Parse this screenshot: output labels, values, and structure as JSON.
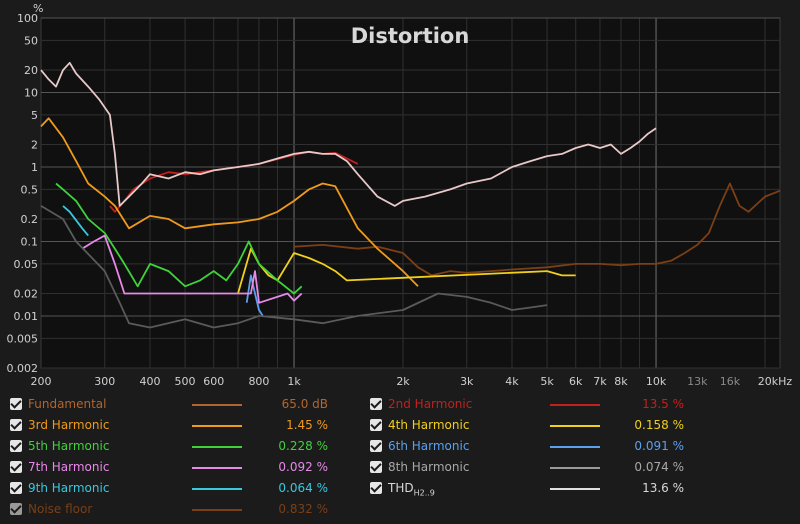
{
  "window": {
    "title": "Distortion"
  },
  "chart_data": {
    "type": "line",
    "title": "Distortion",
    "ylabel": "%",
    "xlabel": "",
    "xscale": "log",
    "yscale": "log",
    "xlim": [
      200,
      22000
    ],
    "ylim": [
      0.002,
      100
    ],
    "y_ticks": [
      {
        "v": 100,
        "label": "100"
      },
      {
        "v": 50,
        "label": "50"
      },
      {
        "v": 20,
        "label": "20"
      },
      {
        "v": 10,
        "label": "10"
      },
      {
        "v": 5,
        "label": "5"
      },
      {
        "v": 2,
        "label": "2"
      },
      {
        "v": 1,
        "label": "1"
      },
      {
        "v": 0.5,
        "label": "0.5"
      },
      {
        "v": 0.2,
        "label": "0.2"
      },
      {
        "v": 0.1,
        "label": "0.1"
      },
      {
        "v": 0.05,
        "label": "0.05"
      },
      {
        "v": 0.02,
        "label": "0.02"
      },
      {
        "v": 0.01,
        "label": "0.01"
      },
      {
        "v": 0.005,
        "label": "0.005"
      },
      {
        "v": 0.002,
        "label": "0.002"
      }
    ],
    "x_ticks": [
      {
        "v": 200,
        "label": "200"
      },
      {
        "v": 300,
        "label": "300"
      },
      {
        "v": 400,
        "label": "400"
      },
      {
        "v": 500,
        "label": "500"
      },
      {
        "v": 600,
        "label": "600"
      },
      {
        "v": 800,
        "label": "800"
      },
      {
        "v": 1000,
        "label": "1k"
      },
      {
        "v": 2000,
        "label": "2k"
      },
      {
        "v": 3000,
        "label": "3k"
      },
      {
        "v": 4000,
        "label": "4k"
      },
      {
        "v": 5000,
        "label": "5k"
      },
      {
        "v": 6000,
        "label": "6k"
      },
      {
        "v": 7000,
        "label": "7k"
      },
      {
        "v": 8000,
        "label": "8k"
      },
      {
        "v": 10000,
        "label": "10k"
      },
      {
        "v": 13000,
        "label": "13k"
      },
      {
        "v": 16000,
        "label": "16k"
      },
      {
        "v": 20000,
        "label": "20kHz"
      }
    ],
    "series": [
      {
        "name": "Noise floor",
        "color": "#7b3f15",
        "x": [
          1000,
          1200,
          1500,
          1700,
          2000,
          2200,
          2400,
          2700,
          3000,
          3500,
          4000,
          5000,
          6000,
          7000,
          8000,
          9000,
          10000,
          11000,
          12000,
          13000,
          14000,
          15000,
          16000,
          17000,
          18000,
          20000,
          22000
        ],
        "y": [
          0.085,
          0.09,
          0.08,
          0.085,
          0.07,
          0.045,
          0.035,
          0.04,
          0.038,
          0.04,
          0.042,
          0.045,
          0.05,
          0.05,
          0.048,
          0.05,
          0.05,
          0.055,
          0.07,
          0.09,
          0.13,
          0.3,
          0.6,
          0.3,
          0.25,
          0.4,
          0.48
        ]
      },
      {
        "name": "Fundamental_or_2nd",
        "color": "#c0201e",
        "x": [
          310,
          320,
          340,
          360,
          400,
          450,
          500,
          600,
          700,
          800,
          1000,
          1100,
          1200,
          1300,
          1500
        ],
        "y": [
          0.3,
          0.25,
          0.35,
          0.5,
          0.7,
          0.85,
          0.8,
          0.9,
          1.0,
          1.1,
          1.45,
          1.6,
          1.5,
          1.55,
          1.1
        ]
      },
      {
        "name": "3rd Harmonic",
        "color": "#f09a1c",
        "x": [
          200,
          210,
          230,
          250,
          270,
          300,
          320,
          350,
          400,
          450,
          500,
          600,
          700,
          800,
          900,
          1000,
          1100,
          1200,
          1300,
          1500,
          1700,
          2000,
          2200
        ],
        "y": [
          3.5,
          4.5,
          2.5,
          1.2,
          0.6,
          0.4,
          0.3,
          0.15,
          0.22,
          0.2,
          0.15,
          0.17,
          0.18,
          0.2,
          0.25,
          0.35,
          0.5,
          0.6,
          0.55,
          0.15,
          0.08,
          0.04,
          0.025
        ]
      },
      {
        "name": "4th Harmonic",
        "color": "#f0d01c",
        "x": [
          700,
          760,
          800,
          850,
          900,
          1000,
          1100,
          1200,
          1300,
          1400,
          5000,
          5500,
          6000
        ],
        "y": [
          0.02,
          0.08,
          0.05,
          0.035,
          0.03,
          0.07,
          0.06,
          0.05,
          0.04,
          0.03,
          0.04,
          0.035,
          0.035
        ]
      },
      {
        "name": "5th Harmonic",
        "color": "#3fd23a",
        "x": [
          220,
          230,
          250,
          270,
          300,
          320,
          340,
          370,
          400,
          450,
          500,
          550,
          600,
          650,
          700,
          750,
          800,
          900,
          1000,
          1050
        ],
        "y": [
          0.6,
          0.5,
          0.35,
          0.2,
          0.13,
          0.08,
          0.05,
          0.025,
          0.05,
          0.04,
          0.025,
          0.03,
          0.04,
          0.03,
          0.05,
          0.1,
          0.05,
          0.03,
          0.02,
          0.025
        ]
      },
      {
        "name": "6th Harmonic",
        "color": "#5aa0ee",
        "x": [
          740,
          760,
          780,
          800,
          820
        ],
        "y": [
          0.015,
          0.035,
          0.02,
          0.012,
          0.01
        ]
      },
      {
        "name": "7th Harmonic",
        "color": "#e888e8",
        "x": [
          260,
          280,
          300,
          320,
          340,
          760,
          780,
          800,
          960,
          1000,
          1050
        ],
        "y": [
          0.08,
          0.1,
          0.12,
          0.05,
          0.02,
          0.02,
          0.04,
          0.015,
          0.02,
          0.016,
          0.02
        ]
      },
      {
        "name": "9th Harmonic",
        "color": "#38c8e0",
        "x": [
          230,
          240,
          260,
          270
        ],
        "y": [
          0.3,
          0.25,
          0.15,
          0.12
        ]
      },
      {
        "name": "8th Harmonic",
        "color": "#5a5a5a",
        "x": [
          200,
          230,
          250,
          300,
          330,
          350,
          400,
          500,
          600,
          700,
          800,
          1000,
          1200,
          1500,
          2000,
          2500,
          3000,
          3500,
          4000,
          4500,
          5000
        ],
        "y": [
          0.3,
          0.2,
          0.1,
          0.04,
          0.015,
          0.008,
          0.007,
          0.009,
          0.007,
          0.008,
          0.01,
          0.009,
          0.008,
          0.01,
          0.012,
          0.02,
          0.018,
          0.015,
          0.012,
          0.013,
          0.014
        ]
      },
      {
        "name": "THD",
        "color": "#e8c8c8",
        "x": [
          200,
          210,
          220,
          230,
          240,
          250,
          270,
          290,
          310,
          320,
          330,
          350,
          380,
          400,
          450,
          500,
          550,
          600,
          700,
          800,
          900,
          1000,
          1100,
          1200,
          1300,
          1400,
          1500,
          1700,
          1900,
          2000,
          2300,
          2700,
          3000,
          3500,
          4000,
          4500,
          5000,
          5500,
          6000,
          6500,
          7000,
          7500,
          8000,
          8500,
          9000,
          9500,
          10000
        ],
        "y": [
          20,
          15,
          12,
          20,
          25,
          18,
          12,
          8,
          5,
          1.5,
          0.3,
          0.4,
          0.6,
          0.8,
          0.7,
          0.85,
          0.8,
          0.9,
          1.0,
          1.1,
          1.3,
          1.5,
          1.6,
          1.5,
          1.5,
          1.2,
          0.8,
          0.4,
          0.3,
          0.35,
          0.4,
          0.5,
          0.6,
          0.7,
          1.0,
          1.2,
          1.4,
          1.5,
          1.8,
          2.0,
          1.8,
          2.0,
          1.5,
          1.8,
          2.2,
          2.8,
          3.3
        ]
      }
    ]
  },
  "legend": {
    "items": [
      {
        "id": "fundamental",
        "label": "Fundamental",
        "value": "65.0 dB",
        "color": "#b2652c",
        "text_color": "#b2652c"
      },
      {
        "id": "third",
        "label": "3rd Harmonic",
        "value": "1.45 %",
        "color": "#f09a1c",
        "text_color": "#f09a1c"
      },
      {
        "id": "fifth",
        "label": "5th Harmonic",
        "value": "0.228 %",
        "color": "#3fd23a",
        "text_color": "#3fd23a"
      },
      {
        "id": "seventh",
        "label": "7th Harmonic",
        "value": "0.092 %",
        "color": "#e888e8",
        "text_color": "#e888e8"
      },
      {
        "id": "ninth",
        "label": "9th Harmonic",
        "value": "0.064 %",
        "color": "#38c8e0",
        "text_color": "#38c8e0"
      },
      {
        "id": "noise",
        "label": "Noise floor",
        "value": "0.832 %",
        "color": "#7b3f15",
        "text_color": "#7b3f15"
      },
      {
        "id": "second",
        "label": "2nd Harmonic",
        "value": "13.5 %",
        "color": "#c0201e",
        "text_color": "#c0201e"
      },
      {
        "id": "fourth",
        "label": "4th Harmonic",
        "value": "0.158 %",
        "color": "#f0d01c",
        "text_color": "#f0d01c"
      },
      {
        "id": "sixth",
        "label": "6th Harmonic",
        "value": "0.091 %",
        "color": "#5aa0ee",
        "text_color": "#5aa0ee"
      },
      {
        "id": "eighth",
        "label": "8th Harmonic",
        "value": "0.074 %",
        "color": "#9a9a9a",
        "text_color": "#a8a8a8"
      },
      {
        "id": "thd",
        "label": "THD",
        "label_sub": "H2..9",
        "value": "13.6 %",
        "color": "#e0e0e0",
        "text_color": "#d8d8d8"
      }
    ]
  }
}
